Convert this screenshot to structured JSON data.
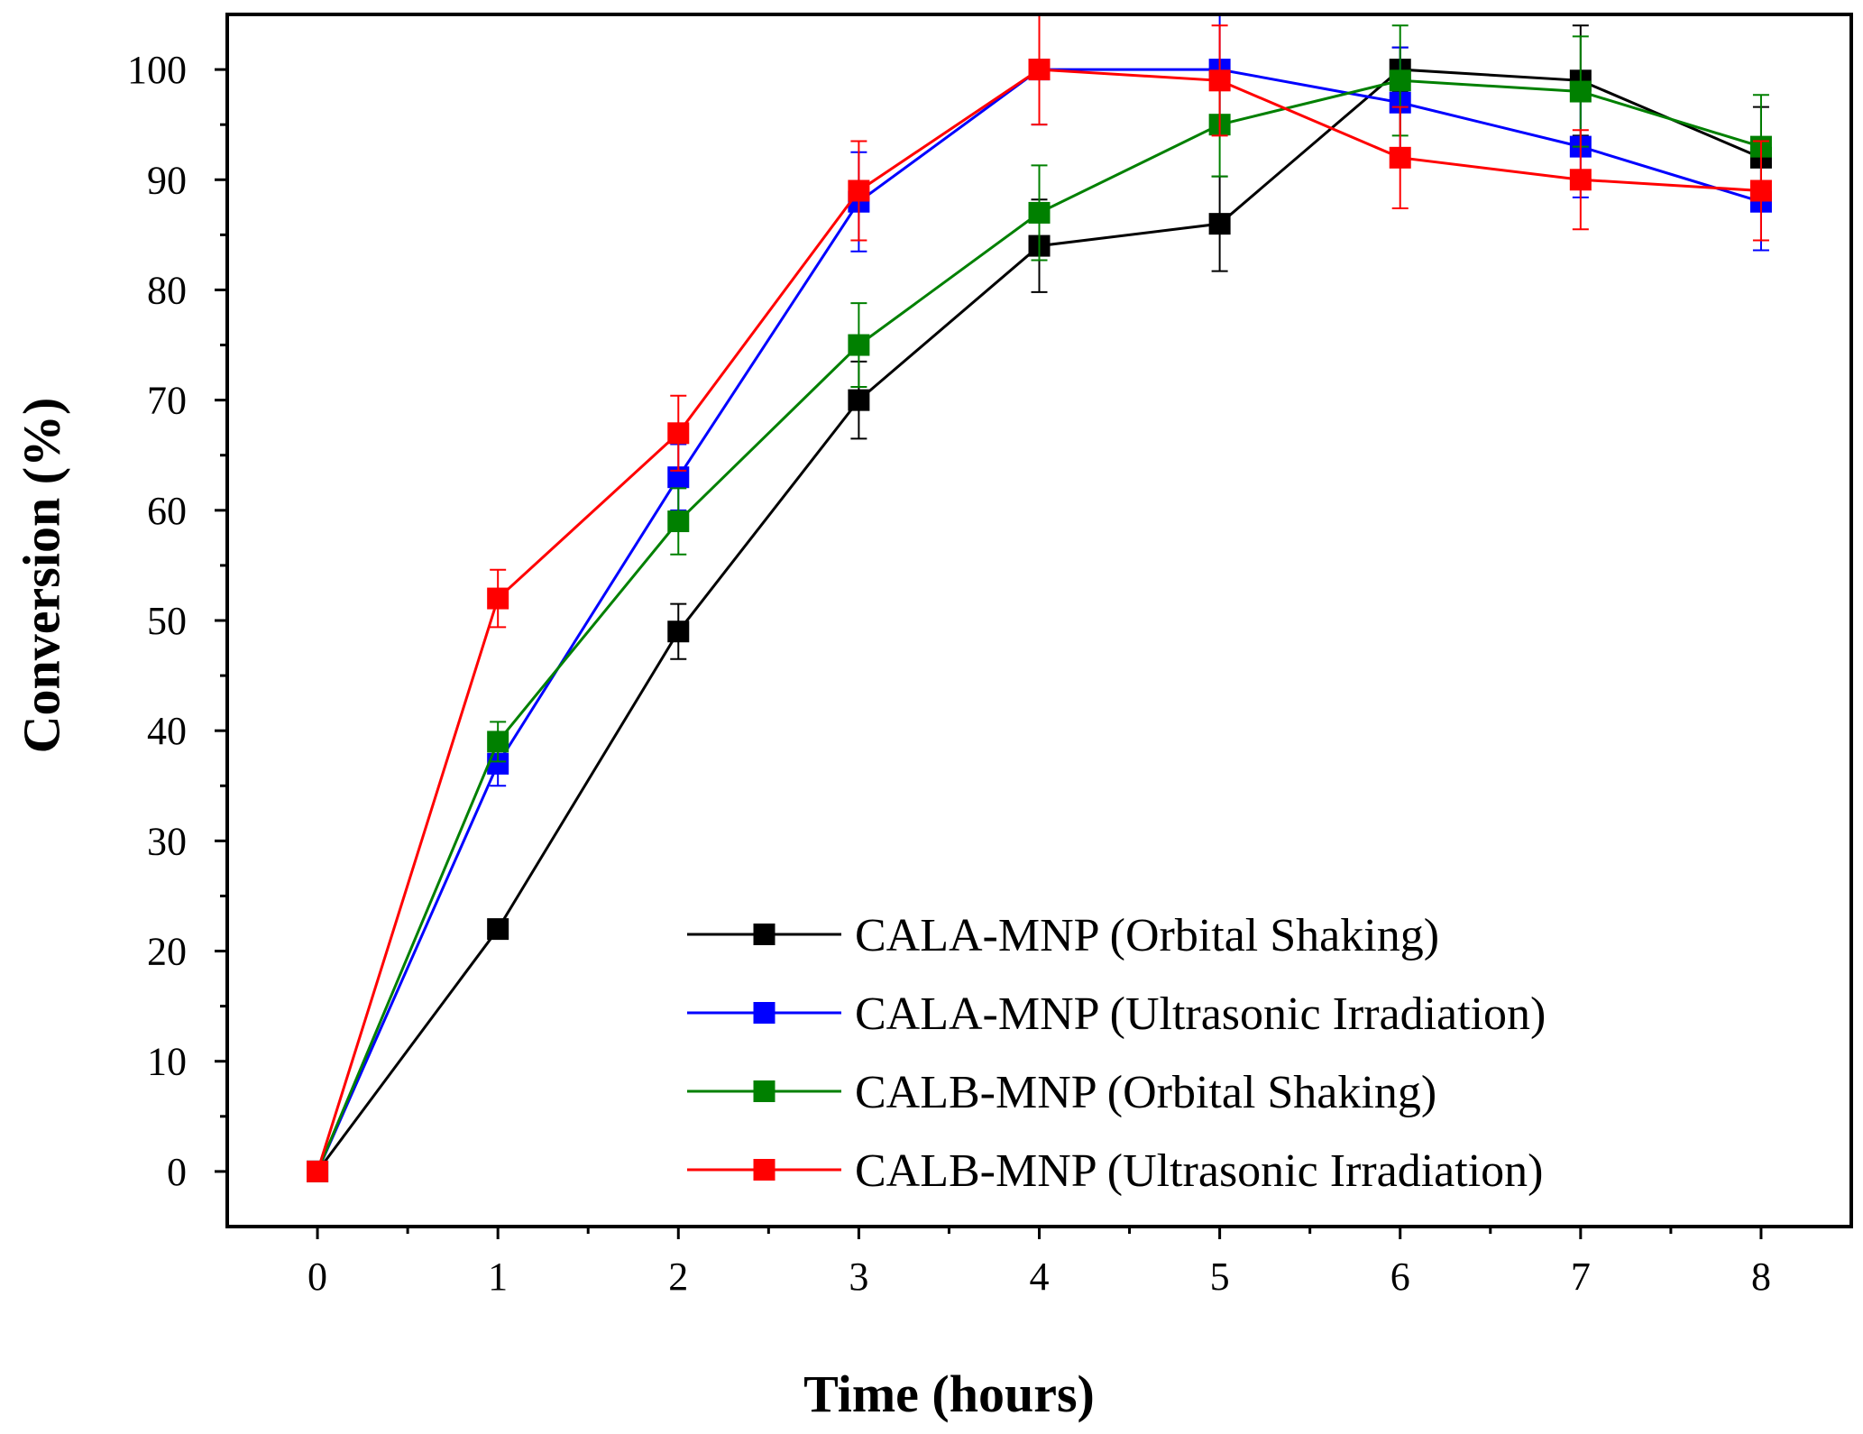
{
  "chart_data": {
    "type": "line",
    "title": "",
    "xlabel": "Time (hours)",
    "ylabel": "Conversion (%)",
    "x": [
      0,
      1,
      2,
      3,
      4,
      5,
      6,
      7,
      8
    ],
    "xlim": [
      -0.5,
      8.5
    ],
    "ylim": [
      -5,
      105
    ],
    "xticks": [
      0,
      1,
      2,
      3,
      4,
      5,
      6,
      7,
      8
    ],
    "yticks": [
      0,
      10,
      20,
      30,
      40,
      50,
      60,
      70,
      80,
      90,
      100
    ],
    "grid": false,
    "legend_position": "bottom-right",
    "series": [
      {
        "name": "CALA-MNP (Orbital Shaking)",
        "color": "#000000",
        "values": [
          0,
          22,
          49,
          70,
          84,
          86,
          100,
          99,
          92
        ],
        "errors": [
          0,
          0.8,
          2.5,
          3.5,
          4.2,
          4.3,
          2.0,
          5.0,
          4.6
        ]
      },
      {
        "name": "CALA-MNP (Ultrasonic Irradiation)",
        "color": "#0000ff",
        "values": [
          0,
          37,
          63,
          88,
          100,
          100,
          97,
          93,
          88
        ],
        "errors": [
          0,
          2.0,
          3.0,
          4.5,
          5.0,
          5.0,
          5.0,
          4.6,
          4.4
        ]
      },
      {
        "name": "CALB-MNP (Orbital Shaking)",
        "color": "#008000",
        "values": [
          0,
          39,
          59,
          75,
          87,
          95,
          99,
          98,
          93
        ],
        "errors": [
          0,
          1.8,
          3.0,
          3.8,
          4.3,
          4.7,
          5.0,
          5.0,
          4.7
        ]
      },
      {
        "name": "CALB-MNP (Ultrasonic Irradiation)",
        "color": "#ff0000",
        "values": [
          0,
          52,
          67,
          89,
          100,
          99,
          92,
          90,
          89
        ],
        "errors": [
          0,
          2.6,
          3.4,
          4.5,
          5.0,
          5.0,
          4.6,
          4.5,
          4.5
        ]
      }
    ]
  }
}
